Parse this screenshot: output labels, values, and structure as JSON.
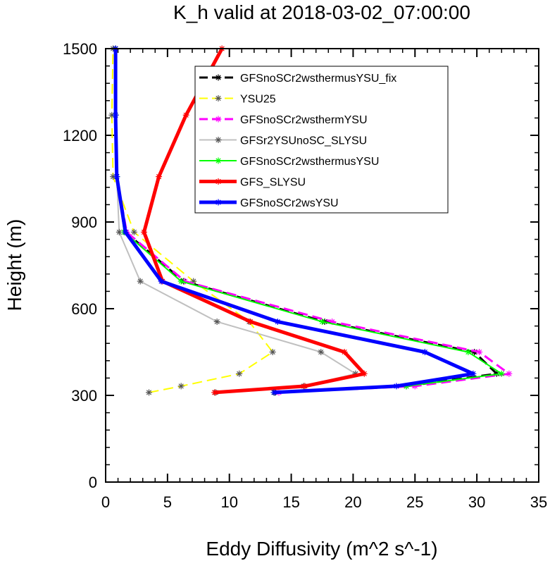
{
  "chart_data": {
    "type": "line",
    "title": "K_h valid at 2018-03-02_07:00:00",
    "xlabel": "Eddy Diffusivity (m^2 s^-1)",
    "ylabel": "Height (m)",
    "xlim": [
      0,
      35
    ],
    "ylim": [
      0,
      1500
    ],
    "xticks": [
      0,
      5,
      10,
      15,
      20,
      25,
      30,
      35
    ],
    "yticks": [
      0,
      300,
      600,
      900,
      1200,
      1500
    ],
    "tick_labels_x": [
      "0",
      "5",
      "10",
      "15",
      "20",
      "25",
      "30",
      "35"
    ],
    "tick_labels_y": [
      "0",
      "300",
      "600",
      "900",
      "1200",
      "1500"
    ],
    "legend_position": "upper-center",
    "grid": false,
    "series": [
      {
        "name": "GFSnoSCr2wsthermusYSU_fix",
        "color": "#000000",
        "dash": "dashed",
        "width": 3,
        "points": [
          [
            13.7,
            310
          ],
          [
            24.3,
            332
          ],
          [
            31.6,
            375
          ],
          [
            29.8,
            450
          ],
          [
            17.7,
            555
          ],
          [
            6.3,
            695
          ],
          [
            1.6,
            865
          ],
          [
            0.9,
            1057
          ],
          [
            0.8,
            1270
          ],
          [
            0.8,
            1500
          ]
        ]
      },
      {
        "name": "YSU25",
        "color": "#ffff00",
        "dash": "dashed",
        "width": 2,
        "points": [
          [
            3.5,
            310
          ],
          [
            6.1,
            332
          ],
          [
            10.8,
            375
          ],
          [
            13.5,
            450
          ],
          [
            11.6,
            555
          ],
          [
            7.1,
            695
          ],
          [
            2.3,
            865
          ],
          [
            0.6,
            1057
          ],
          [
            0.5,
            1270
          ],
          [
            0.6,
            1500
          ]
        ]
      },
      {
        "name": "GFSnoSCr2wsthermYSU",
        "color": "#ff00ff",
        "dash": "dashed",
        "width": 3,
        "points": [
          [
            14.0,
            310
          ],
          [
            25.0,
            332
          ],
          [
            32.6,
            375
          ],
          [
            30.2,
            450
          ],
          [
            18.3,
            555
          ],
          [
            6.4,
            695
          ],
          [
            1.7,
            865
          ],
          [
            0.9,
            1057
          ],
          [
            0.8,
            1270
          ],
          [
            0.8,
            1500
          ]
        ]
      },
      {
        "name": "GFSr2YSUnoSC_SLYSU",
        "color": "#c0c0c0",
        "dash": "solid",
        "width": 2,
        "points": [
          [
            8.9,
            310
          ],
          [
            16.0,
            332
          ],
          [
            20.2,
            375
          ],
          [
            17.4,
            450
          ],
          [
            9.0,
            555
          ],
          [
            2.8,
            695
          ],
          [
            1.1,
            865
          ],
          [
            0.9,
            1057
          ],
          [
            0.8,
            1270
          ],
          [
            0.8,
            1500
          ]
        ]
      },
      {
        "name": "GFSnoSCr2wsthermusYSU",
        "color": "#00ff00",
        "dash": "solid",
        "width": 2,
        "points": [
          [
            13.6,
            310
          ],
          [
            24.3,
            332
          ],
          [
            32.0,
            375
          ],
          [
            29.3,
            450
          ],
          [
            17.5,
            555
          ],
          [
            6.1,
            695
          ],
          [
            1.5,
            865
          ],
          [
            0.9,
            1057
          ],
          [
            0.8,
            1270
          ],
          [
            0.8,
            1500
          ]
        ]
      },
      {
        "name": "GFS_SLYSU",
        "color": "#ff0000",
        "dash": "solid",
        "width": 5,
        "points": [
          [
            8.8,
            310
          ],
          [
            16.1,
            332
          ],
          [
            20.9,
            375
          ],
          [
            19.3,
            450
          ],
          [
            11.7,
            555
          ],
          [
            4.6,
            695
          ],
          [
            3.1,
            865
          ],
          [
            4.3,
            1057
          ],
          [
            6.5,
            1270
          ],
          [
            9.4,
            1500
          ]
        ]
      },
      {
        "name": "GFSnoSCr2wsYSU",
        "color": "#0000ff",
        "dash": "solid",
        "width": 5,
        "points": [
          [
            13.6,
            310
          ],
          [
            23.5,
            332
          ],
          [
            29.7,
            375
          ],
          [
            25.8,
            450
          ],
          [
            13.9,
            555
          ],
          [
            4.5,
            695
          ],
          [
            1.6,
            865
          ],
          [
            0.9,
            1057
          ],
          [
            0.8,
            1270
          ],
          [
            0.8,
            1500
          ]
        ]
      }
    ]
  }
}
